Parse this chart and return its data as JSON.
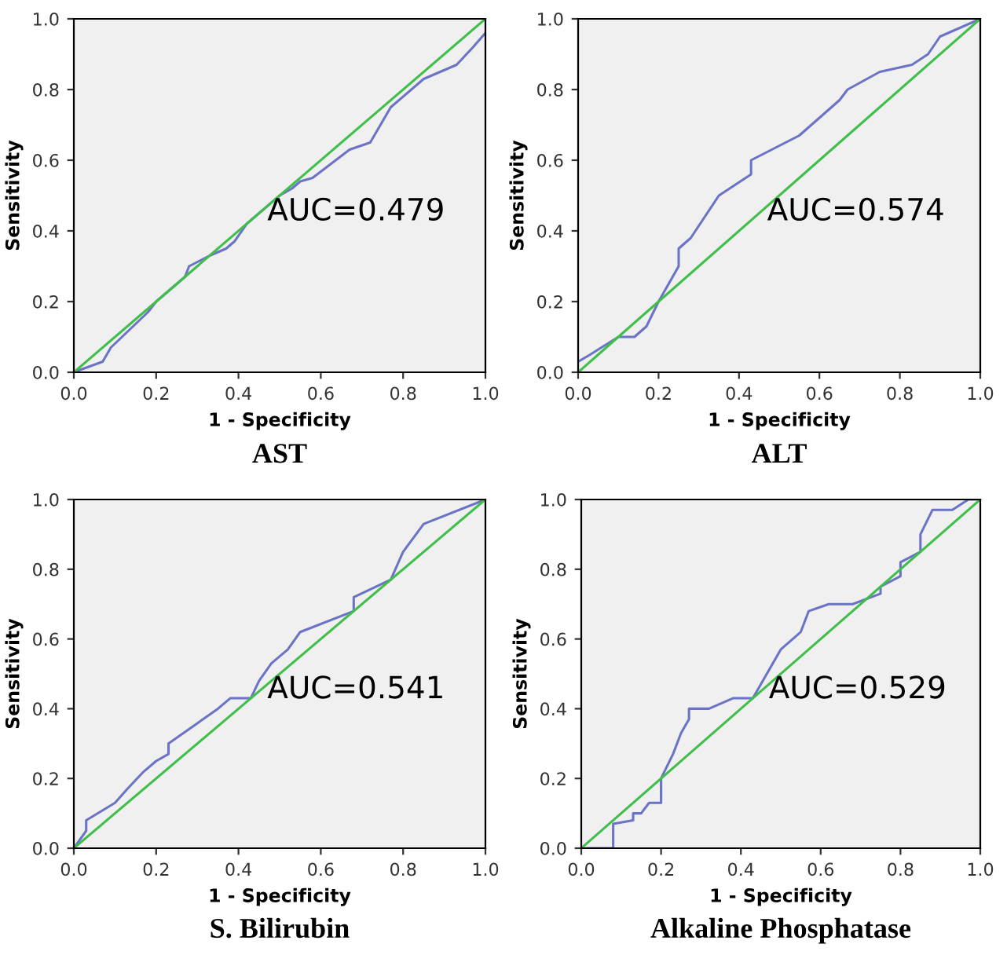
{
  "chart_data": [
    {
      "type": "line",
      "title": "AST",
      "xlabel": "1 - Specificity",
      "ylabel": "Sensitivity",
      "annotations": [
        "AUC=0.479"
      ],
      "xlim": [
        0,
        1
      ],
      "ylim": [
        0,
        1
      ],
      "xticks": [
        {
          "value": 0,
          "label": "0.0"
        },
        {
          "value": 0.2,
          "label": "0.2"
        },
        {
          "value": 0.4,
          "label": "0.4"
        },
        {
          "value": 0.6,
          "label": "0.6"
        },
        {
          "value": 0.8,
          "label": "0.8"
        },
        {
          "value": 1,
          "label": "1.0"
        }
      ],
      "yticks": [
        {
          "value": 0,
          "label": "0.0"
        },
        {
          "value": 0.2,
          "label": "0.2"
        },
        {
          "value": 0.4,
          "label": "0.4"
        },
        {
          "value": 0.6,
          "label": "0.6"
        },
        {
          "value": 0.8,
          "label": "0.8"
        },
        {
          "value": 1,
          "label": "1.0"
        }
      ],
      "grid": false,
      "legend": false,
      "marker": "none",
      "line_style": "solid",
      "series": [
        {
          "color": "#6b73c6",
          "x": [
            0,
            0.07,
            0.09,
            0.18,
            0.2,
            0.27,
            0.28,
            0.33,
            0.37,
            0.39,
            0.42,
            0.5,
            0.53,
            0.55,
            0.58,
            0.67,
            0.72,
            0.77,
            0.85,
            0.93,
            0.97,
            1
          ],
          "values": [
            0,
            0.03,
            0.07,
            0.17,
            0.2,
            0.27,
            0.3,
            0.33,
            0.35,
            0.37,
            0.42,
            0.5,
            0.52,
            0.54,
            0.55,
            0.63,
            0.65,
            0.75,
            0.83,
            0.87,
            0.92,
            0.96
          ]
        },
        {
          "color": "#3fbf4a",
          "x": [
            0,
            1
          ],
          "values": [
            0,
            1
          ]
        }
      ]
    },
    {
      "type": "line",
      "title": "ALT",
      "xlabel": "1 - Specificity",
      "ylabel": "Sensitivity",
      "annotations": [
        "AUC=0.574"
      ],
      "xlim": [
        0,
        1
      ],
      "ylim": [
        0,
        1
      ],
      "xticks": [
        {
          "value": 0,
          "label": "0.0"
        },
        {
          "value": 0.2,
          "label": "0.2"
        },
        {
          "value": 0.4,
          "label": "0.4"
        },
        {
          "value": 0.6,
          "label": "0.6"
        },
        {
          "value": 0.8,
          "label": "0.8"
        },
        {
          "value": 1,
          "label": "1.0"
        }
      ],
      "yticks": [
        {
          "value": 0,
          "label": "0.0"
        },
        {
          "value": 0.2,
          "label": "0.2"
        },
        {
          "value": 0.4,
          "label": "0.4"
        },
        {
          "value": 0.6,
          "label": "0.6"
        },
        {
          "value": 0.8,
          "label": "0.8"
        },
        {
          "value": 1,
          "label": "1.0"
        }
      ],
      "grid": false,
      "legend": false,
      "marker": "none",
      "line_style": "solid",
      "series": [
        {
          "color": "#6b73c6",
          "x": [
            0,
            0.03,
            0.1,
            0.14,
            0.17,
            0.2,
            0.24,
            0.25,
            0.25,
            0.28,
            0.35,
            0.43,
            0.43,
            0.55,
            0.65,
            0.67,
            0.75,
            0.83,
            0.87,
            0.9,
            1
          ],
          "values": [
            0.03,
            0.05,
            0.1,
            0.1,
            0.13,
            0.2,
            0.28,
            0.3,
            0.35,
            0.38,
            0.5,
            0.56,
            0.6,
            0.67,
            0.77,
            0.8,
            0.85,
            0.87,
            0.9,
            0.95,
            1
          ]
        },
        {
          "color": "#3fbf4a",
          "x": [
            0,
            1
          ],
          "values": [
            0,
            1
          ]
        }
      ]
    },
    {
      "type": "line",
      "title": "S. Bilirubin",
      "xlabel": "1 - Specificity",
      "ylabel": "Sensitivity",
      "annotations": [
        "AUC=0.541"
      ],
      "xlim": [
        0,
        1
      ],
      "ylim": [
        0,
        1
      ],
      "xticks": [
        {
          "value": 0,
          "label": "0.0"
        },
        {
          "value": 0.2,
          "label": "0.2"
        },
        {
          "value": 0.4,
          "label": "0.4"
        },
        {
          "value": 0.6,
          "label": "0.6"
        },
        {
          "value": 0.8,
          "label": "0.8"
        },
        {
          "value": 1,
          "label": "1.0"
        }
      ],
      "yticks": [
        {
          "value": 0,
          "label": "0.0"
        },
        {
          "value": 0.2,
          "label": "0.2"
        },
        {
          "value": 0.4,
          "label": "0.4"
        },
        {
          "value": 0.6,
          "label": "0.6"
        },
        {
          "value": 0.8,
          "label": "0.8"
        },
        {
          "value": 1,
          "label": "1.0"
        }
      ],
      "grid": false,
      "legend": false,
      "marker": "none",
      "line_style": "solid",
      "series": [
        {
          "color": "#6b73c6",
          "x": [
            0,
            0.03,
            0.03,
            0.1,
            0.13,
            0.17,
            0.2,
            0.23,
            0.23,
            0.35,
            0.38,
            0.43,
            0.45,
            0.48,
            0.52,
            0.55,
            0.68,
            0.68,
            0.77,
            0.8,
            0.85,
            1
          ],
          "values": [
            0,
            0.05,
            0.08,
            0.13,
            0.17,
            0.22,
            0.25,
            0.27,
            0.3,
            0.4,
            0.43,
            0.43,
            0.48,
            0.53,
            0.57,
            0.62,
            0.68,
            0.72,
            0.77,
            0.85,
            0.93,
            1
          ]
        },
        {
          "color": "#3fbf4a",
          "x": [
            0,
            1
          ],
          "values": [
            0,
            1
          ]
        }
      ]
    },
    {
      "type": "line",
      "title": "Alkaline Phosphatase",
      "xlabel": "1 - Specificity",
      "ylabel": "Sensitivity",
      "annotations": [
        "AUC=0.529"
      ],
      "xlim": [
        0,
        1
      ],
      "ylim": [
        0,
        1
      ],
      "xticks": [
        {
          "value": 0,
          "label": "0.0"
        },
        {
          "value": 0.2,
          "label": "0.2"
        },
        {
          "value": 0.4,
          "label": "0.4"
        },
        {
          "value": 0.6,
          "label": "0.6"
        },
        {
          "value": 0.8,
          "label": "0.8"
        },
        {
          "value": 1,
          "label": "1.0"
        }
      ],
      "yticks": [
        {
          "value": 0,
          "label": "0.0"
        },
        {
          "value": 0.2,
          "label": "0.2"
        },
        {
          "value": 0.4,
          "label": "0.4"
        },
        {
          "value": 0.6,
          "label": "0.6"
        },
        {
          "value": 0.8,
          "label": "0.8"
        },
        {
          "value": 1,
          "label": "1.0"
        }
      ],
      "grid": false,
      "legend": false,
      "marker": "none",
      "line_style": "solid",
      "series": [
        {
          "color": "#6b73c6",
          "x": [
            0,
            0.08,
            0.08,
            0.13,
            0.13,
            0.15,
            0.17,
            0.2,
            0.2,
            0.23,
            0.25,
            0.27,
            0.27,
            0.32,
            0.38,
            0.43,
            0.5,
            0.55,
            0.57,
            0.62,
            0.68,
            0.75,
            0.75,
            0.8,
            0.8,
            0.85,
            0.85,
            0.88,
            0.93,
            0.97,
            1
          ],
          "values": [
            0,
            0,
            0.07,
            0.08,
            0.1,
            0.1,
            0.13,
            0.13,
            0.2,
            0.27,
            0.33,
            0.37,
            0.4,
            0.4,
            0.43,
            0.43,
            0.57,
            0.62,
            0.68,
            0.7,
            0.7,
            0.73,
            0.75,
            0.78,
            0.82,
            0.85,
            0.9,
            0.97,
            0.97,
            1,
            1
          ]
        },
        {
          "color": "#3fbf4a",
          "x": [
            0,
            1
          ],
          "values": [
            0,
            1
          ]
        }
      ]
    }
  ]
}
